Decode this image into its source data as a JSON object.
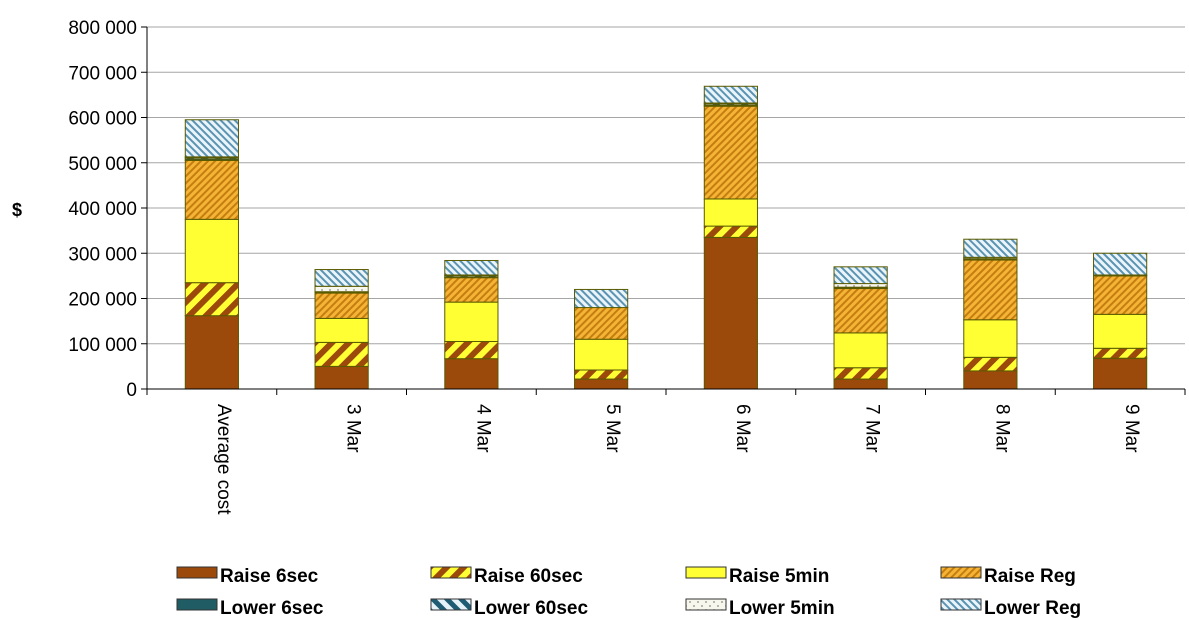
{
  "chart_data": {
    "type": "bar",
    "stacked": true,
    "ylabel": "$",
    "xlabel": "",
    "ylim": [
      0,
      800000
    ],
    "yticks": [
      "0",
      "100 000",
      "200 000",
      "300 000",
      "400 000",
      "500 000",
      "600 000",
      "700 000",
      "800 000"
    ],
    "grid": true,
    "legend_position": "bottom",
    "categories": [
      "Average cost",
      "3 Mar",
      "4 Mar",
      "5 Mar",
      "6 Mar",
      "7 Mar",
      "8 Mar",
      "9 Mar"
    ],
    "series": [
      {
        "name": "Raise 6sec",
        "color": "#9c4a0c",
        "pattern": "solid",
        "values": [
          162000,
          50000,
          67000,
          22000,
          335000,
          22000,
          40000,
          68000
        ]
      },
      {
        "name": "Raise 60sec",
        "color": "#d08a1e",
        "pattern": "wide-diagonal",
        "values": [
          73000,
          53000,
          38000,
          20000,
          25000,
          25000,
          30000,
          22000
        ]
      },
      {
        "name": "Raise 5min",
        "color": "#ffff33",
        "pattern": "solid",
        "values": [
          140000,
          53000,
          87000,
          68000,
          60000,
          77000,
          83000,
          75000
        ]
      },
      {
        "name": "Raise Reg",
        "color": "#f4b436",
        "pattern": "fine-diagonal",
        "values": [
          130000,
          56000,
          54000,
          70000,
          205000,
          98000,
          132000,
          85000
        ]
      },
      {
        "name": "Lower 6sec",
        "color": "#1f5c63",
        "pattern": "solid",
        "values": [
          3000,
          1000,
          1000,
          0,
          2000,
          1000,
          1000,
          0
        ]
      },
      {
        "name": "Lower 60sec",
        "color": "#2d6f87",
        "pattern": "wide-diagonal",
        "values": [
          3000,
          2000,
          3000,
          0,
          3000,
          2000,
          2000,
          2000
        ]
      },
      {
        "name": "Lower 5min",
        "color": "#f5f5e8",
        "pattern": "dots",
        "values": [
          2000,
          12000,
          2000,
          0,
          2000,
          8000,
          3000,
          0
        ]
      },
      {
        "name": "Lower Reg",
        "color": "#6aa3bd",
        "pattern": "fine-diagonal",
        "values": [
          82000,
          37000,
          32000,
          40000,
          37000,
          37000,
          40000,
          48000
        ]
      }
    ]
  }
}
